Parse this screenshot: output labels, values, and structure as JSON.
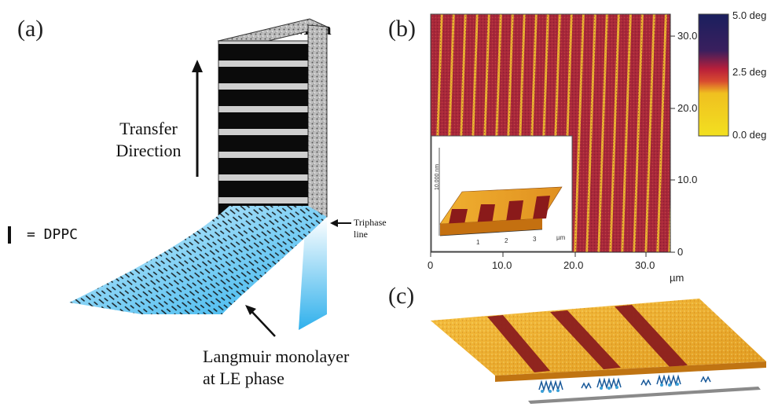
{
  "panel_a": {
    "label": "(a)",
    "mica_label": "Mica",
    "transfer_line1": "Transfer",
    "transfer_line2": "Direction",
    "legend_text": "= DPPC",
    "triphase_line1": "Triphase",
    "triphase_line2": "line",
    "monolayer_line1": "Langmuir monolayer",
    "monolayer_line2": "at LE phase"
  },
  "panel_b": {
    "label": "(b)",
    "x_ticks": [
      "0",
      "10.0",
      "20.0",
      "30.0"
    ],
    "x_unit": "µm",
    "y_ticks": [
      "30.0",
      "20.0",
      "10.0",
      "0"
    ],
    "colorbar_ticks": [
      "5.0 deg",
      "2.5 deg",
      "0.0 deg"
    ],
    "inset_z_label": "10.000 nm",
    "inset_ticks": [
      "1",
      "2",
      "3"
    ],
    "inset_unit": "µm",
    "colors": {
      "stripe_bg": "#a8283a",
      "stripe_fg": "#e8b030",
      "cbar_top": "#1a1f5e",
      "cbar_mid": "#b81f3a",
      "cbar_low": "#f0c020"
    }
  },
  "panel_c": {
    "label": "(c)"
  }
}
